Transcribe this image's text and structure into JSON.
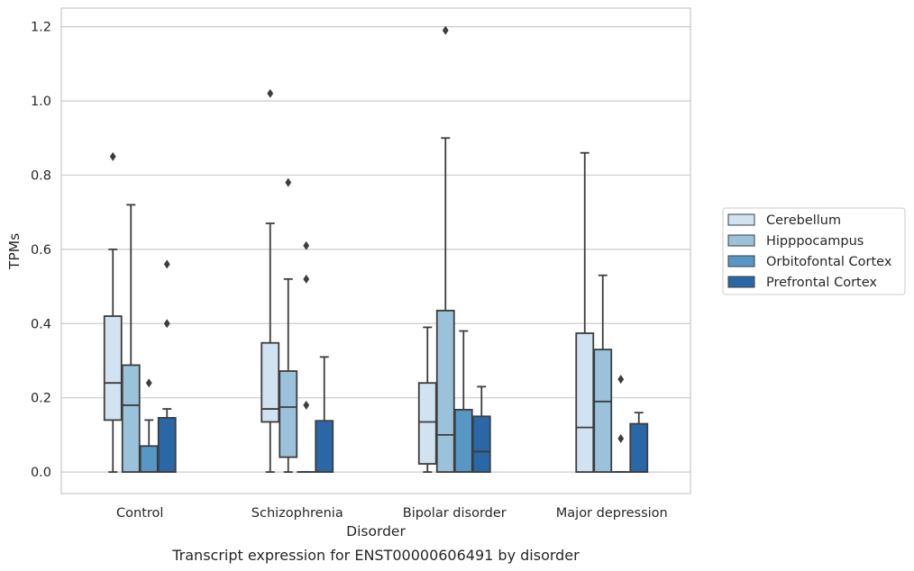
{
  "chart_data": {
    "type": "box",
    "caption": "Transcript expression for ENST00000606491 by disorder",
    "xlabel": "Disorder",
    "ylabel": "TPMs",
    "ylim": [
      -0.058,
      1.25
    ],
    "yticks": [
      "0.0",
      "0.2",
      "0.4",
      "0.6",
      "0.8",
      "1.0",
      "1.2"
    ],
    "grid": "horizontal",
    "legend_position": "right",
    "categories": [
      "Control",
      "Schizophrenia",
      "Bipolar disorder",
      "Major depression"
    ],
    "series": [
      {
        "name": "Cerebellum",
        "color": "#d1e2f1",
        "boxes": [
          {
            "whislo": 0.0,
            "q1": 0.14,
            "med": 0.24,
            "q3": 0.42,
            "whishi": 0.6,
            "fliers": [
              0.85
            ]
          },
          {
            "whislo": 0.0,
            "q1": 0.135,
            "med": 0.17,
            "q3": 0.348,
            "whishi": 0.67,
            "fliers": [
              1.02
            ]
          },
          {
            "whislo": 0.0,
            "q1": 0.022,
            "med": 0.135,
            "q3": 0.24,
            "whishi": 0.39,
            "fliers": []
          },
          {
            "whislo": 0.0,
            "q1": 0.0,
            "med": 0.12,
            "q3": 0.374,
            "whishi": 0.86,
            "fliers": []
          }
        ]
      },
      {
        "name": "Hipppocampus",
        "color": "#9ac2da",
        "boxes": [
          {
            "whislo": 0.0,
            "q1": 0.0,
            "med": 0.18,
            "q3": 0.288,
            "whishi": 0.72,
            "fliers": []
          },
          {
            "whislo": 0.0,
            "q1": 0.04,
            "med": 0.175,
            "q3": 0.272,
            "whishi": 0.52,
            "fliers": [
              0.78
            ]
          },
          {
            "whislo": 0.0,
            "q1": 0.0,
            "med": 0.1,
            "q3": 0.435,
            "whishi": 0.9,
            "fliers": [
              1.19
            ]
          },
          {
            "whislo": 0.0,
            "q1": 0.0,
            "med": 0.19,
            "q3": 0.33,
            "whishi": 0.53,
            "fliers": []
          }
        ]
      },
      {
        "name": "Orbitofontal Cortex",
        "color": "#5797c6",
        "boxes": [
          {
            "whislo": 0.0,
            "q1": 0.0,
            "med": 0.0,
            "q3": 0.07,
            "whishi": 0.14,
            "fliers": [
              0.24
            ]
          },
          {
            "whislo": 0.0,
            "q1": 0.0,
            "med": 0.0,
            "q3": 0.0,
            "whishi": 0.0,
            "fliers": [
              0.18,
              0.52,
              0.61
            ]
          },
          {
            "whislo": 0.0,
            "q1": 0.0,
            "med": 0.0,
            "q3": 0.168,
            "whishi": 0.38,
            "fliers": []
          },
          {
            "whislo": 0.0,
            "q1": 0.0,
            "med": 0.0,
            "q3": 0.0,
            "whishi": 0.0,
            "fliers": [
              0.09,
              0.25
            ]
          }
        ]
      },
      {
        "name": "Prefrontal Cortex",
        "color": "#2a67a6",
        "boxes": [
          {
            "whislo": 0.0,
            "q1": 0.0,
            "med": 0.0,
            "q3": 0.146,
            "whishi": 0.17,
            "fliers": [
              0.4,
              0.56
            ]
          },
          {
            "whislo": 0.0,
            "q1": 0.0,
            "med": 0.0,
            "q3": 0.138,
            "whishi": 0.31,
            "fliers": []
          },
          {
            "whislo": 0.0,
            "q1": 0.0,
            "med": 0.055,
            "q3": 0.15,
            "whishi": 0.23,
            "fliers": []
          },
          {
            "whislo": 0.0,
            "q1": 0.0,
            "med": 0.0,
            "q3": 0.13,
            "whishi": 0.16,
            "fliers": []
          }
        ]
      }
    ]
  }
}
